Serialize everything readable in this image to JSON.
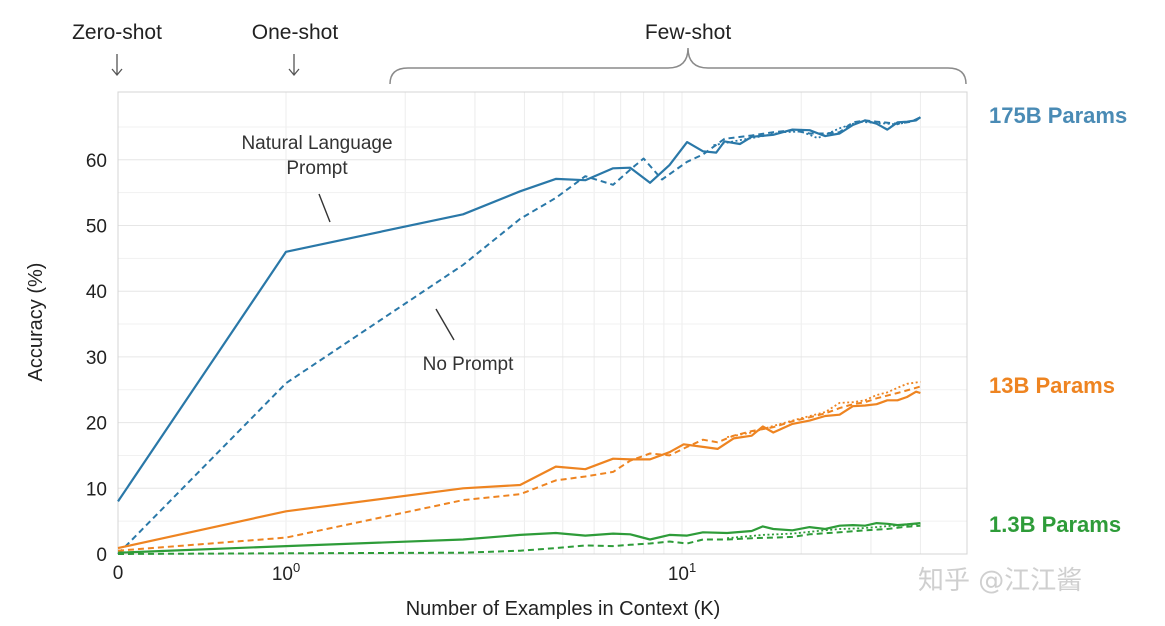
{
  "chart_data": {
    "type": "line",
    "xlabel": "Number of Examples in Context  (K)",
    "ylabel": "Accuracy (%)",
    "xscale": "log (with 0 shown at left)",
    "xlim": [
      0,
      40
    ],
    "ylim": [
      0,
      70
    ],
    "yticks": [
      0,
      10,
      20,
      30,
      40,
      50,
      60
    ],
    "ytick_labels": [
      "0",
      "10",
      "20",
      "30",
      "40",
      "50",
      "60"
    ],
    "xticks": [
      {
        "value": 0,
        "base": "0",
        "exp": ""
      },
      {
        "value": 1,
        "base": "10",
        "exp": "0"
      },
      {
        "value": 10,
        "base": "10",
        "exp": "1"
      }
    ],
    "grid": true,
    "regime_labels": {
      "zero": "Zero-shot",
      "one": "One-shot",
      "few": "Few-shot"
    },
    "annotations": {
      "nl_line1": "Natural Language",
      "nl_line2": "Prompt",
      "no_prompt": "No Prompt"
    },
    "model_labels": [
      {
        "text": "175B Params",
        "color": "#4a8bb5"
      },
      {
        "text": "13B Params",
        "color": "#ee8421"
      },
      {
        "text": "1.3B Params",
        "color": "#2e9c39"
      }
    ],
    "series": [
      {
        "model": "175B",
        "style": "solid",
        "color": "#2a78a8",
        "points": [
          [
            0,
            8
          ],
          [
            1,
            46
          ],
          [
            2.8,
            51.7
          ],
          [
            3.9,
            55.2
          ],
          [
            4.8,
            57.1
          ],
          [
            5.7,
            56.9
          ],
          [
            6.7,
            58.7
          ],
          [
            7.4,
            58.8
          ],
          [
            8.3,
            56.5
          ],
          [
            9.3,
            59.2
          ],
          [
            10.3,
            62.7
          ],
          [
            11.3,
            61.3
          ],
          [
            12.2,
            61.1
          ],
          [
            12.8,
            62.8
          ],
          [
            14,
            62.4
          ],
          [
            15,
            63.5
          ],
          [
            17,
            63.8
          ],
          [
            19,
            64.6
          ],
          [
            21,
            64.5
          ],
          [
            23,
            63.6
          ],
          [
            25,
            64
          ],
          [
            27,
            65.3
          ],
          [
            29,
            66
          ],
          [
            31,
            65.5
          ],
          [
            33,
            64.6
          ],
          [
            35,
            65.7
          ],
          [
            37,
            65.8
          ],
          [
            39,
            66
          ],
          [
            40,
            66.5
          ]
        ]
      },
      {
        "model": "175B",
        "style": "dashed",
        "color": "#2a78a8",
        "points": [
          [
            0,
            0
          ],
          [
            1,
            26
          ],
          [
            2.8,
            44
          ],
          [
            3.9,
            51
          ],
          [
            4.8,
            54.2
          ],
          [
            5.7,
            57.5
          ],
          [
            6.7,
            56.2
          ],
          [
            7.5,
            58.8
          ],
          [
            8,
            60.2
          ],
          [
            8.9,
            57
          ],
          [
            10.3,
            59.7
          ],
          [
            11.3,
            60.8
          ],
          [
            12.8,
            63.2
          ],
          [
            15,
            63.7
          ],
          [
            17,
            64.2
          ],
          [
            19,
            64.5
          ],
          [
            21,
            64
          ],
          [
            23,
            64
          ],
          [
            25,
            64.2
          ],
          [
            27,
            65.7
          ],
          [
            29,
            66
          ],
          [
            31,
            65.8
          ],
          [
            35,
            65.5
          ],
          [
            38,
            65.8
          ],
          [
            40,
            66.5
          ]
        ]
      },
      {
        "model": "175B",
        "style": "dotted",
        "color": "#2a78a8",
        "points": [
          [
            12,
            62.2
          ],
          [
            14,
            63
          ],
          [
            16,
            63.6
          ],
          [
            18,
            64.2
          ],
          [
            20,
            64.3
          ],
          [
            22,
            63.3
          ],
          [
            25,
            64.8
          ],
          [
            28,
            65.8
          ],
          [
            31,
            65.6
          ],
          [
            35,
            65.4
          ],
          [
            38,
            65.9
          ],
          [
            40,
            66.4
          ]
        ]
      },
      {
        "model": "13B",
        "style": "solid",
        "color": "#ee8421",
        "points": [
          [
            0,
            0.9
          ],
          [
            1,
            6.5
          ],
          [
            2.8,
            10
          ],
          [
            3.9,
            10.5
          ],
          [
            4.8,
            13.3
          ],
          [
            5.7,
            12.9
          ],
          [
            6.7,
            14.5
          ],
          [
            7.4,
            14.4
          ],
          [
            8.3,
            14.4
          ],
          [
            9.3,
            15.5
          ],
          [
            10.1,
            16.7
          ],
          [
            11.3,
            16.3
          ],
          [
            12.3,
            16
          ],
          [
            13.5,
            17.6
          ],
          [
            15,
            18
          ],
          [
            16,
            19.4
          ],
          [
            17,
            18.5
          ],
          [
            19,
            19.8
          ],
          [
            21,
            20.3
          ],
          [
            23,
            21
          ],
          [
            25,
            21.2
          ],
          [
            27,
            22.5
          ],
          [
            29,
            22.6
          ],
          [
            31,
            22.8
          ],
          [
            33,
            23.4
          ],
          [
            35,
            23.4
          ],
          [
            37,
            23.9
          ],
          [
            39,
            24.7
          ],
          [
            40,
            24.5
          ]
        ]
      },
      {
        "model": "13B",
        "style": "dashed",
        "color": "#ee8421",
        "points": [
          [
            0,
            0.5
          ],
          [
            1,
            2.5
          ],
          [
            2.8,
            8.2
          ],
          [
            3.9,
            9.1
          ],
          [
            4.8,
            11.2
          ],
          [
            5.7,
            11.8
          ],
          [
            6.7,
            12.5
          ],
          [
            7.4,
            14.2
          ],
          [
            8.3,
            15.3
          ],
          [
            9.3,
            15
          ],
          [
            10.3,
            16.3
          ],
          [
            11.3,
            17.4
          ],
          [
            12.3,
            17
          ],
          [
            13.5,
            18
          ],
          [
            15,
            18.7
          ],
          [
            17,
            19.3
          ],
          [
            19,
            20.2
          ],
          [
            21,
            20.8
          ],
          [
            23,
            21.4
          ],
          [
            25,
            22.2
          ],
          [
            27,
            22.8
          ],
          [
            29,
            23.1
          ],
          [
            31,
            23.7
          ],
          [
            35,
            24.5
          ],
          [
            38,
            25.1
          ],
          [
            40,
            25.5
          ]
        ]
      },
      {
        "model": "13B",
        "style": "dotted",
        "color": "#ee8421",
        "points": [
          [
            13,
            17.8
          ],
          [
            15,
            18.5
          ],
          [
            17,
            19.5
          ],
          [
            19,
            20.3
          ],
          [
            21,
            21
          ],
          [
            23,
            21.6
          ],
          [
            25,
            23
          ],
          [
            27,
            23.1
          ],
          [
            29,
            23.4
          ],
          [
            31,
            24.2
          ],
          [
            33,
            24.6
          ],
          [
            35,
            25.3
          ],
          [
            37,
            25.9
          ],
          [
            40,
            26.2
          ]
        ]
      },
      {
        "model": "1.3B",
        "style": "solid",
        "color": "#2e9c39",
        "points": [
          [
            0,
            0.2
          ],
          [
            1,
            1.2
          ],
          [
            2.8,
            2.2
          ],
          [
            3.9,
            2.9
          ],
          [
            4.8,
            3.2
          ],
          [
            5.7,
            2.8
          ],
          [
            6.7,
            3.1
          ],
          [
            7.4,
            3
          ],
          [
            8.3,
            2.2
          ],
          [
            9.3,
            2.9
          ],
          [
            10.3,
            2.8
          ],
          [
            11.3,
            3.3
          ],
          [
            13,
            3.2
          ],
          [
            15,
            3.5
          ],
          [
            16,
            4.2
          ],
          [
            17,
            3.8
          ],
          [
            19,
            3.6
          ],
          [
            21,
            4.1
          ],
          [
            23,
            3.8
          ],
          [
            25,
            4.3
          ],
          [
            27,
            4.4
          ],
          [
            29,
            4.3
          ],
          [
            31,
            4.7
          ],
          [
            33,
            4.6
          ],
          [
            35,
            4.4
          ],
          [
            37,
            4.5
          ],
          [
            40,
            4.7
          ]
        ]
      },
      {
        "model": "1.3B",
        "style": "dashed",
        "color": "#2e9c39",
        "points": [
          [
            0,
            0
          ],
          [
            1,
            0.1
          ],
          [
            2.8,
            0.2
          ],
          [
            3.9,
            0.5
          ],
          [
            4.8,
            0.9
          ],
          [
            5.7,
            1.3
          ],
          [
            6.7,
            1.2
          ],
          [
            7.4,
            1.4
          ],
          [
            8.3,
            1.6
          ],
          [
            9.3,
            1.9
          ],
          [
            10.3,
            1.6
          ],
          [
            11.3,
            2.2
          ],
          [
            13,
            2.2
          ],
          [
            15,
            2.4
          ],
          [
            17,
            2.5
          ],
          [
            19,
            2.6
          ],
          [
            21,
            3
          ],
          [
            25,
            3.3
          ],
          [
            29,
            3.6
          ],
          [
            33,
            3.8
          ],
          [
            36,
            4.1
          ],
          [
            40,
            4.3
          ]
        ]
      },
      {
        "model": "1.3B",
        "style": "dotted",
        "color": "#2e9c39",
        "points": [
          [
            13,
            2.4
          ],
          [
            16,
            2.9
          ],
          [
            19,
            3.1
          ],
          [
            22,
            3.5
          ],
          [
            25,
            3.8
          ],
          [
            28,
            3.9
          ],
          [
            31,
            4.1
          ],
          [
            34,
            4.3
          ],
          [
            37,
            4.4
          ],
          [
            40,
            4.6
          ]
        ]
      }
    ]
  },
  "watermark": "知乎 @江江酱"
}
